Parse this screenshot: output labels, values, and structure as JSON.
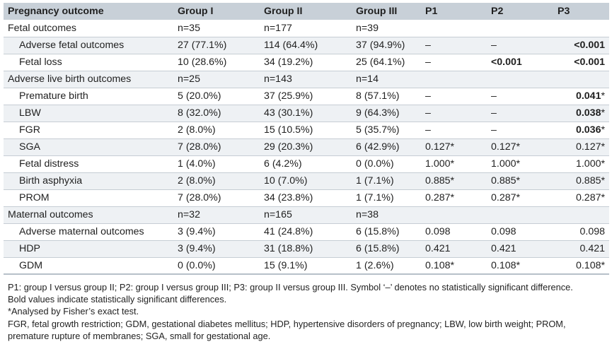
{
  "table": {
    "headers": [
      "Pregnancy outcome",
      "Group I",
      "Group II",
      "Group III",
      "P1",
      "P2",
      "P3"
    ],
    "rows": [
      {
        "label": "Fetal outcomes",
        "g1": "n=35",
        "g2": "n=177",
        "g3": "n=39",
        "p1": "",
        "p2": "",
        "p3": "",
        "p3_bold": false,
        "sub": false
      },
      {
        "label": "Adverse fetal outcomes",
        "g1": "27 (77.1%)",
        "g2": "114 (64.4%)",
        "g3": "37 (94.9%)",
        "p1": "–",
        "p2": "–",
        "p3": "<0.001",
        "p3_bold": true,
        "sub": true
      },
      {
        "label": "Fetal loss",
        "g1": "10 (28.6%)",
        "g2": "34 (19.2%)",
        "g3": "25 (64.1%)",
        "p1": "–",
        "p2": "<0.001",
        "p2_bold": true,
        "p3": "<0.001",
        "p3_bold": true,
        "sub": true
      },
      {
        "label": "Adverse live birth outcomes",
        "g1": "n=25",
        "g2": "n=143",
        "g3": "n=14",
        "p1": "",
        "p2": "",
        "p3": "",
        "p3_bold": false,
        "sub": false
      },
      {
        "label": "Premature birth",
        "g1": "5 (20.0%)",
        "g2": "37 (25.9%)",
        "g3": "8 (57.1%)",
        "p1": "–",
        "p2": "–",
        "p3": "0.041",
        "p3_suffix": "*",
        "p3_bold": true,
        "sub": true
      },
      {
        "label": "LBW",
        "g1": "8 (32.0%)",
        "g2": "43 (30.1%)",
        "g3": "9 (64.3%)",
        "p1": "–",
        "p2": "–",
        "p3": "0.038",
        "p3_suffix": "*",
        "p3_bold": true,
        "sub": true
      },
      {
        "label": "FGR",
        "g1": "2 (8.0%)",
        "g2": "15 (10.5%)",
        "g3": "5 (35.7%)",
        "p1": "–",
        "p2": "–",
        "p3": "0.036",
        "p3_suffix": "*",
        "p3_bold": true,
        "sub": true
      },
      {
        "label": "SGA",
        "g1": "7 (28.0%)",
        "g2": "29 (20.3%)",
        "g3": "6 (42.9%)",
        "p1": "0.127*",
        "p2": "0.127*",
        "p3": "0.127*",
        "p3_bold": false,
        "sub": true
      },
      {
        "label": "Fetal distress",
        "g1": "1 (4.0%)",
        "g2": "6 (4.2%)",
        "g3": "0 (0.0%)",
        "p1": "1.000*",
        "p2": "1.000*",
        "p3": "1.000*",
        "p3_bold": false,
        "sub": true
      },
      {
        "label": "Birth asphyxia",
        "g1": "2 (8.0%)",
        "g2": "10 (7.0%)",
        "g3": "1 (7.1%)",
        "p1": "0.885*",
        "p2": "0.885*",
        "p3": "0.885*",
        "p3_bold": false,
        "sub": true
      },
      {
        "label": "PROM",
        "g1": "7 (28.0%)",
        "g2": "34 (23.8%)",
        "g3": "1 (7.1%)",
        "p1": "0.287*",
        "p2": "0.287*",
        "p3": "0.287*",
        "p3_bold": false,
        "sub": true
      },
      {
        "label": "Maternal outcomes",
        "g1": "n=32",
        "g2": "n=165",
        "g3": "n=38",
        "p1": "",
        "p2": "",
        "p3": "",
        "p3_bold": false,
        "sub": false
      },
      {
        "label": "Adverse maternal outcomes",
        "g1": "3 (9.4%)",
        "g2": "41 (24.8%)",
        "g3": "6 (15.8%)",
        "p1": "0.098",
        "p2": "0.098",
        "p3": "0.098",
        "p3_bold": false,
        "sub": true
      },
      {
        "label": "HDP",
        "g1": "3 (9.4%)",
        "g2": "31 (18.8%)",
        "g3": "6 (15.8%)",
        "p1": "0.421",
        "p2": "0.421",
        "p3": "0.421",
        "p3_bold": false,
        "sub": true
      },
      {
        "label": "GDM",
        "g1": "0 (0.0%)",
        "g2": "15 (9.1%)",
        "g3": "1 (2.6%)",
        "p1": "0.108*",
        "p2": "0.108*",
        "p3": "0.108*",
        "p3_bold": false,
        "sub": true
      }
    ]
  },
  "notes": {
    "line1": "P1: group I versus group II; P2: group I versus group III; P3: group II versus group III. Symbol ‘–’ denotes no statistically significant difference.",
    "line2": "Bold values indicate statistically significant differences.",
    "line3": "*Analysed by Fisher’s exact test.",
    "line4": "FGR, fetal growth restriction; GDM, gestational diabetes mellitus; HDP, hypertensive disorders of pregnancy; LBW, low birth weight; PROM,",
    "line5": "premature rupture of membranes; SGA, small for gestational age."
  }
}
